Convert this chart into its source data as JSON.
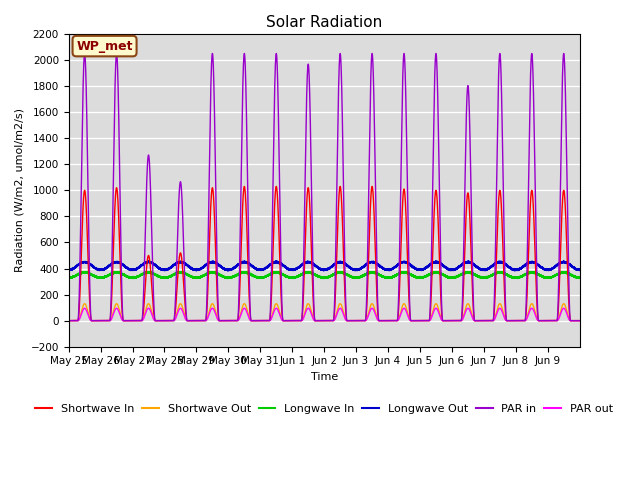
{
  "title": "Solar Radiation",
  "ylabel": "Radiation (W/m2, umol/m2/s)",
  "xlabel": "Time",
  "ylim": [
    -200,
    2200
  ],
  "yticks": [
    -200,
    0,
    200,
    400,
    600,
    800,
    1000,
    1200,
    1400,
    1600,
    1800,
    2000,
    2200
  ],
  "xtick_labels": [
    "May 25",
    "May 26",
    "May 27",
    "May 28",
    "May 29",
    "May 30",
    "May 31",
    "Jun 1",
    "Jun 2",
    "Jun 3",
    "Jun 4",
    "Jun 5",
    "Jun 6",
    "Jun 7",
    "Jun 8",
    "Jun 9"
  ],
  "annotation_text": "WP_met",
  "annotation_bg": "#fffacd",
  "annotation_border": "#8B4513",
  "bg_color": "#dcdcdc",
  "series": {
    "shortwave_in": {
      "color": "#ff0000",
      "label": "Shortwave In",
      "lw": 1.0
    },
    "shortwave_out": {
      "color": "#ffa500",
      "label": "Shortwave Out",
      "lw": 1.0
    },
    "longwave_in": {
      "color": "#00cc00",
      "label": "Longwave In",
      "lw": 1.2
    },
    "longwave_out": {
      "color": "#0000cc",
      "label": "Longwave Out",
      "lw": 1.2
    },
    "par_in": {
      "color": "#9900cc",
      "label": "PAR in",
      "lw": 1.0
    },
    "par_out": {
      "color": "#ff00ff",
      "label": "PAR out",
      "lw": 1.0
    }
  },
  "n_days": 16,
  "points_per_day": 1440,
  "shortwave_peak": 1000,
  "par_peak": 2050,
  "shortwave_out_peak": 130,
  "par_out_peak": 95,
  "longwave_in_base": 330,
  "longwave_out_base": 390,
  "day_peaks_sw": [
    1.0,
    1.02,
    0.5,
    0.52,
    1.02,
    1.03,
    1.03,
    1.02,
    1.03,
    1.03,
    1.01,
    1.0,
    0.98,
    1.0,
    1.0,
    1.0
  ],
  "day_peaks_par": [
    1.0,
    1.0,
    0.62,
    0.52,
    1.0,
    1.0,
    1.0,
    0.96,
    1.0,
    1.0,
    1.0,
    1.0,
    0.88,
    1.0,
    1.0,
    1.0
  ]
}
